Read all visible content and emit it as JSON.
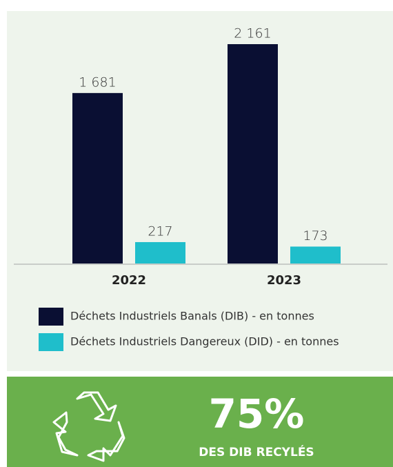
{
  "chart_data": {
    "type": "bar",
    "categories": [
      "2022",
      "2023"
    ],
    "series": [
      {
        "name": "Déchets Industriels Banals (DIB) - en tonnes",
        "color": "#0a0f33",
        "values": [
          1681,
          2161
        ],
        "value_labels": [
          "1 681",
          "2 161"
        ]
      },
      {
        "name": "Déchets Industriels Dangereux (DID) - en tonnes",
        "color": "#1fbecb",
        "values": [
          217,
          173
        ]
      }
    ]
  },
  "highlight": {
    "value": "75%",
    "text": "DES DIB RECYLÉS"
  }
}
